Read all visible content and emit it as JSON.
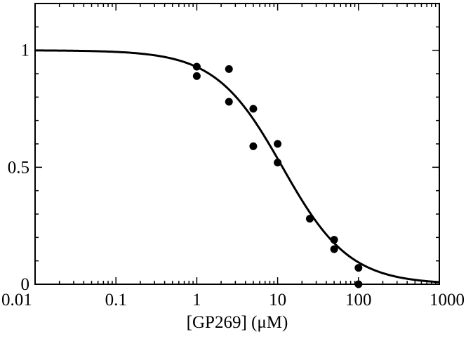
{
  "chart_data": {
    "type": "scatter",
    "title": "",
    "xlabel": "[GP269] (μM)",
    "ylabel": "",
    "x_scale": "log",
    "xlim": [
      0.01,
      1000
    ],
    "ylim": [
      0,
      1.2
    ],
    "x_ticks": [
      {
        "value": 0.01,
        "label": "0.01"
      },
      {
        "value": 0.1,
        "label": "0.1"
      },
      {
        "value": 1,
        "label": "1"
      },
      {
        "value": 10,
        "label": "10"
      },
      {
        "value": 100,
        "label": "100"
      },
      {
        "value": 1000,
        "label": "1000"
      }
    ],
    "y_ticks": [
      {
        "value": 0,
        "label": "0"
      },
      {
        "value": 0.5,
        "label": "0.5"
      },
      {
        "value": 1,
        "label": "1"
      }
    ],
    "grid": false,
    "legend": "none",
    "series": [
      {
        "type": "scatter",
        "x": [
          1,
          1,
          2.5,
          2.5,
          5,
          5,
          10,
          10,
          25,
          50,
          50,
          100,
          100
        ],
        "y": [
          0.93,
          0.89,
          0.92,
          0.78,
          0.75,
          0.59,
          0.6,
          0.52,
          0.28,
          0.19,
          0.15,
          0.07,
          0.0
        ]
      },
      {
        "type": "line",
        "model": "top / (1 + (x / IC50)^hill)",
        "top": 1.0,
        "ic50": 11.5,
        "hill": 1.05
      }
    ]
  }
}
